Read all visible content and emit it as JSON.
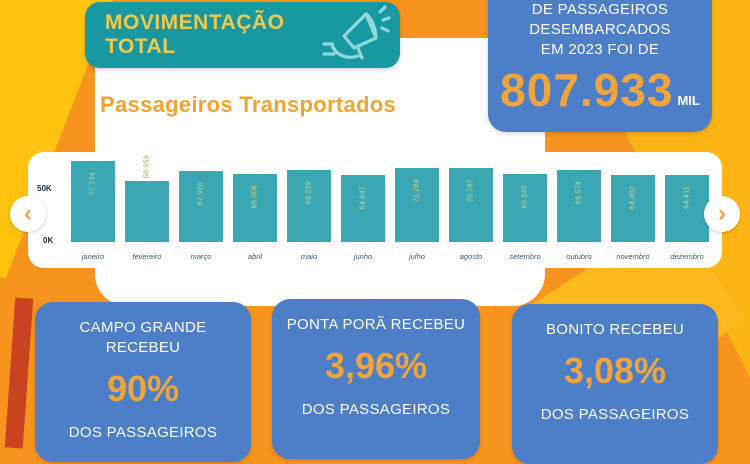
{
  "colors": {
    "background_orange": "#F7941E",
    "accent_yellow": "#FFC30F",
    "teal_badge": "#1899A1",
    "bar_teal": "#3AA7B3",
    "card_blue": "#4D7EC8",
    "number_orange": "#F0A43C",
    "title_orange": "#F0A432"
  },
  "badge": {
    "line1": "MOVIMENTAÇÃO",
    "line2": "TOTAL",
    "icon": "megaphone-hand-icon"
  },
  "total_box": {
    "line1": "DE PASSAGEIROS",
    "line2": "DESEMBARCADOS",
    "line3": "EM 2023 FOI DE",
    "value": "807.933",
    "unit": "MIL"
  },
  "chart_data": {
    "type": "bar",
    "title": "Passageiros Transportados",
    "categories": [
      "janeiro",
      "fevereiro",
      "março",
      "abril",
      "maio",
      "junho",
      "julho",
      "agosto",
      "setembro",
      "outubro",
      "novembro",
      "dezembro"
    ],
    "values": [
      77734,
      58953,
      67926,
      65008,
      69229,
      64847,
      71284,
      70787,
      65245,
      69574,
      64402,
      64411
    ],
    "value_labels": [
      "77.734",
      "58.953",
      "67.926",
      "65.008",
      "69.229",
      "64.847",
      "71.284",
      "70.787",
      "65.245",
      "69.574",
      "64.402",
      "64.411"
    ],
    "yticks": [
      "50K",
      "0K"
    ],
    "ylim": [
      0,
      85000
    ],
    "grid": false,
    "legend": false,
    "xlabel": "",
    "ylabel": "",
    "bar_color": "#3AA7B3",
    "value_label_color_inside": "#D9D28C",
    "value_label_color_outside": "#BF9A4E",
    "outside_label_index": 1
  },
  "carousel": {
    "prev_icon": "‹",
    "next_icon": "›"
  },
  "cards": [
    {
      "title": "CAMPO GRANDE RECEBEU",
      "value": "90%",
      "suffix": "DOS PASSAGEIROS"
    },
    {
      "title": "PONTA PORÃ RECEBEU",
      "value": "3,96%",
      "suffix": "DOS PASSAGEIROS"
    },
    {
      "title": "BONITO RECEBEU",
      "value": "3,08%",
      "suffix": "DOS PASSAGEIROS"
    }
  ]
}
